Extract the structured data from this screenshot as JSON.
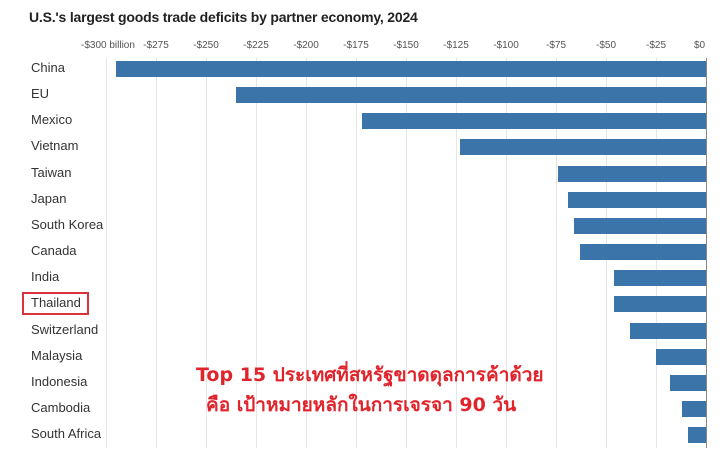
{
  "chart_data": {
    "type": "bar",
    "orientation": "horizontal",
    "title": "U.S.'s largest goods trade deficits by partner economy, 2024",
    "xlabel": "",
    "ylabel": "",
    "unit": "billion USD",
    "xlim": [
      -300,
      0
    ],
    "grid": true,
    "x_ticks": [
      {
        "value": -300,
        "label": "-$300 billion"
      },
      {
        "value": -275,
        "label": "-$275"
      },
      {
        "value": -250,
        "label": "-$250"
      },
      {
        "value": -225,
        "label": "-$225"
      },
      {
        "value": -200,
        "label": "-$200"
      },
      {
        "value": -175,
        "label": "-$175"
      },
      {
        "value": -150,
        "label": "-$150"
      },
      {
        "value": -125,
        "label": "-$125"
      },
      {
        "value": -100,
        "label": "-$100"
      },
      {
        "value": -75,
        "label": "-$75"
      },
      {
        "value": -50,
        "label": "-$50"
      },
      {
        "value": -25,
        "label": "-$25"
      },
      {
        "value": 0,
        "label": "$0"
      }
    ],
    "categories": [
      "China",
      "EU",
      "Mexico",
      "Vietnam",
      "Taiwan",
      "Japan",
      "South Korea",
      "Canada",
      "India",
      "Thailand",
      "Switzerland",
      "Malaysia",
      "Indonesia",
      "Cambodia",
      "South Africa"
    ],
    "values": [
      -295,
      -235,
      -172,
      -123,
      -74,
      -69,
      -66,
      -63,
      -46,
      -46,
      -38,
      -25,
      -18,
      -12,
      -9
    ],
    "bar_color": "#3b74a8",
    "highlighted_category": "Thailand",
    "highlight_color": "#d9333c",
    "annotation": {
      "line1": "Top 15 ประเทศที่สหรัฐขาดดุลการค้าด้วย",
      "line2": "คือ เป้าหมายหลักในการเจรจา 90 วัน",
      "color": "#e0242c"
    }
  }
}
